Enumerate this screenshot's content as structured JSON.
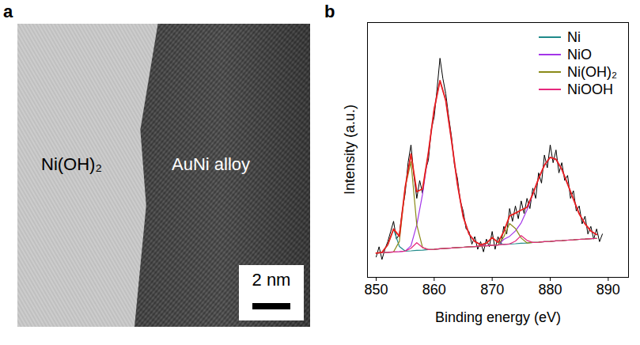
{
  "panel_letters": [
    "a",
    "b"
  ],
  "image_panel": {
    "left_label": "Ni(OH)₂",
    "right_label": "AuNi alloy",
    "scale_bar": "2 nm"
  },
  "chart_data": {
    "type": "line",
    "x_label": "Binding energy (eV)",
    "y_label": "Intensity (a.u.)",
    "xlim": [
      848.5,
      893.5
    ],
    "xticks": [
      850,
      860,
      870,
      880,
      890
    ],
    "ylim": [
      0,
      100
    ],
    "yticks": [],
    "tick_labels": "x",
    "grid": false,
    "legend": "top-right",
    "x": [
      850,
      851,
      852,
      853,
      854,
      855,
      856,
      857,
      858,
      859,
      860,
      861,
      862,
      863,
      864,
      865,
      866,
      867,
      868,
      869,
      870,
      871,
      872,
      873,
      874,
      875,
      876,
      877,
      878,
      879,
      880,
      881,
      882,
      883,
      884,
      885,
      886,
      887,
      888
    ],
    "series": [
      {
        "name": null,
        "color": "#000000",
        "x": [
          850,
          850.5,
          851,
          851.5,
          852,
          852.5,
          853,
          853.5,
          854,
          854.5,
          855,
          855.5,
          856,
          856.5,
          857,
          857.5,
          858,
          858.5,
          859,
          859.5,
          860,
          860.5,
          861,
          861.5,
          862,
          862.5,
          863,
          863.5,
          864,
          864.5,
          865,
          865.5,
          866,
          866.5,
          867,
          867.5,
          868,
          868.5,
          869,
          869.5,
          870,
          870.5,
          871,
          871.5,
          872,
          872.5,
          873,
          873.5,
          874,
          874.5,
          875,
          875.5,
          876,
          876.5,
          877,
          877.5,
          878,
          878.5,
          879,
          879.5,
          880,
          880.5,
          881,
          881.5,
          882,
          882.5,
          883,
          883.5,
          884,
          884.5,
          885,
          885.5,
          886,
          886.5,
          887,
          887.5,
          888,
          888.5,
          889
        ],
        "values": [
          8,
          12,
          7,
          11,
          14,
          18,
          22,
          15,
          17,
          26,
          33,
          45,
          52,
          40,
          31,
          38,
          33,
          42,
          46,
          58,
          63,
          74,
          86,
          78,
          72,
          63,
          55,
          44,
          39,
          30,
          26,
          19,
          18,
          13,
          16,
          11,
          14,
          10,
          15,
          12,
          18,
          11,
          16,
          13,
          20,
          17,
          27,
          22,
          28,
          23,
          30,
          25,
          31,
          27,
          35,
          31,
          41,
          37,
          48,
          43,
          52,
          45,
          50,
          41,
          45,
          38,
          40,
          31,
          34,
          26,
          28,
          21,
          24,
          17,
          20,
          15,
          19,
          14,
          17
        ]
      },
      {
        "name": "Ni",
        "color": "#1f8a8a",
        "values": [
          9.5,
          9.8,
          12.8,
          19.0,
          12.1,
          10.3,
          10.4,
          10.6,
          10.7,
          10.9,
          11.0,
          11.2,
          11.4,
          11.5,
          11.7,
          11.8,
          12.0,
          12.1,
          12.3,
          13.4,
          15.6,
          13.7,
          12.9,
          13.1,
          13.2,
          13.4,
          13.5,
          13.7,
          13.8,
          14.0,
          14.1,
          14.3,
          14.4,
          14.6,
          14.7,
          14.9,
          15.0,
          15.2,
          15.3
        ]
      },
      {
        "name": "NiO",
        "color": "#a335e8",
        "values": [
          9.5,
          9.7,
          9.8,
          10.0,
          10.1,
          10.3,
          12.4,
          20.6,
          32.7,
          48.9,
          66.0,
          77.2,
          69.4,
          53.5,
          36.7,
          23.8,
          17.0,
          14.1,
          12.8,
          12.4,
          12.6,
          12.7,
          14.9,
          16.1,
          18.2,
          21.4,
          26.5,
          32.7,
          38.8,
          44.0,
          47.1,
          46.3,
          42.4,
          36.6,
          30.7,
          24.9,
          21.0,
          18.2,
          16.8
        ]
      },
      {
        "name": "Ni(OH)₂",
        "color": "#8a8a18",
        "values": [
          9.5,
          9.7,
          9.8,
          10.0,
          14.1,
          35.3,
          45.4,
          20.6,
          11.7,
          10.9,
          11.0,
          11.2,
          11.4,
          11.5,
          11.7,
          11.8,
          12.0,
          12.1,
          12.3,
          12.4,
          12.6,
          12.7,
          15.9,
          21.1,
          19.2,
          15.4,
          13.5,
          13.7,
          13.8,
          14.0,
          14.1,
          14.3,
          14.4,
          14.6,
          14.7,
          14.9,
          15.0,
          15.2,
          15.3
        ]
      },
      {
        "name": "NiOOH",
        "color": "#e6287d",
        "values": [
          9.5,
          9.7,
          9.8,
          10.0,
          10.1,
          10.3,
          11.4,
          13.6,
          11.7,
          10.9,
          11.0,
          11.2,
          11.4,
          11.5,
          11.7,
          11.8,
          12.0,
          12.1,
          12.3,
          12.4,
          12.6,
          12.7,
          12.9,
          13.1,
          14.2,
          16.4,
          14.5,
          13.7,
          13.8,
          14.0,
          14.1,
          14.3,
          14.4,
          14.6,
          14.7,
          14.9,
          15.0,
          15.2,
          15.3
        ]
      },
      {
        "name": null,
        "color": "#e8201c",
        "values": [
          9.5,
          9.8,
          12.8,
          19.0,
          16.1,
          35.3,
          48.4,
          33.6,
          34.7,
          48.9,
          66.0,
          77.2,
          69.4,
          53.5,
          36.7,
          23.8,
          17.0,
          14.1,
          12.8,
          13.4,
          15.6,
          13.7,
          17.9,
          24.1,
          25.2,
          26.4,
          27.5,
          32.7,
          38.8,
          44.0,
          47.1,
          46.3,
          42.4,
          36.6,
          30.7,
          24.9,
          21.0,
          18.2,
          16.8
        ]
      }
    ]
  }
}
